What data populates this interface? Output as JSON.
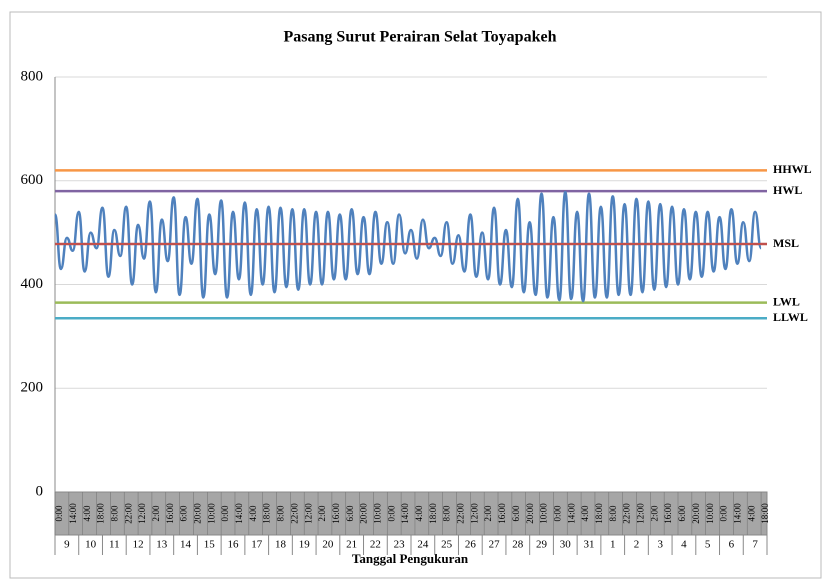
{
  "chart_data": {
    "type": "line",
    "title": "Pasang Surut Perairan Selat Toyapakeh",
    "x_label": "Tanggal Pengukuran",
    "color": "#4f81bd",
    "ylim": [
      0,
      800
    ],
    "yticks": [
      0,
      200,
      400,
      600,
      800
    ],
    "grid": true,
    "xlim": [
      0,
      720
    ],
    "xticks": [
      {
        "value": 0,
        "label": "0:00"
      },
      {
        "value": 14,
        "label": "14:00"
      },
      {
        "value": 28,
        "label": "4:00"
      },
      {
        "value": 42,
        "label": "18:00"
      },
      {
        "value": 56,
        "label": "8:00"
      },
      {
        "value": 70,
        "label": "22:00"
      },
      {
        "value": 84,
        "label": "12:00"
      },
      {
        "value": 98,
        "label": "2:00"
      },
      {
        "value": 112,
        "label": "16:00"
      },
      {
        "value": 126,
        "label": "6:00"
      },
      {
        "value": 140,
        "label": "20:00"
      },
      {
        "value": 154,
        "label": "10:00"
      },
      {
        "value": 168,
        "label": "0:00"
      },
      {
        "value": 182,
        "label": "14:00"
      },
      {
        "value": 196,
        "label": "4:00"
      },
      {
        "value": 210,
        "label": "18:00"
      },
      {
        "value": 224,
        "label": "8:00"
      },
      {
        "value": 238,
        "label": "22:00"
      },
      {
        "value": 252,
        "label": "12:00"
      },
      {
        "value": 266,
        "label": "2:00"
      },
      {
        "value": 280,
        "label": "16:00"
      },
      {
        "value": 294,
        "label": "6:00"
      },
      {
        "value": 308,
        "label": "20:00"
      },
      {
        "value": 322,
        "label": "10:00"
      },
      {
        "value": 336,
        "label": "0:00"
      },
      {
        "value": 350,
        "label": "14:00"
      },
      {
        "value": 364,
        "label": "4:00"
      },
      {
        "value": 378,
        "label": "18:00"
      },
      {
        "value": 392,
        "label": "8:00"
      },
      {
        "value": 406,
        "label": "22:00"
      },
      {
        "value": 420,
        "label": "12:00"
      },
      {
        "value": 434,
        "label": "2:00"
      },
      {
        "value": 448,
        "label": "16:00"
      },
      {
        "value": 462,
        "label": "6:00"
      },
      {
        "value": 476,
        "label": "20:00"
      },
      {
        "value": 490,
        "label": "10:00"
      },
      {
        "value": 504,
        "label": "0:00"
      },
      {
        "value": 518,
        "label": "14:00"
      },
      {
        "value": 532,
        "label": "4:00"
      },
      {
        "value": 546,
        "label": "18:00"
      },
      {
        "value": 560,
        "label": "8:00"
      },
      {
        "value": 574,
        "label": "22:00"
      },
      {
        "value": 588,
        "label": "12:00"
      },
      {
        "value": 602,
        "label": "2:00"
      },
      {
        "value": 616,
        "label": "16:00"
      },
      {
        "value": 630,
        "label": "6:00"
      },
      {
        "value": 644,
        "label": "20:00"
      },
      {
        "value": 658,
        "label": "10:00"
      },
      {
        "value": 672,
        "label": "0:00"
      },
      {
        "value": 686,
        "label": "14:00"
      },
      {
        "value": 700,
        "label": "4:00"
      },
      {
        "value": 714,
        "label": "18:00"
      }
    ],
    "days": [
      "9",
      "10",
      "11",
      "12",
      "13",
      "14",
      "15",
      "16",
      "17",
      "18",
      "19",
      "20",
      "21",
      "22",
      "23",
      "24",
      "25",
      "26",
      "27",
      "28",
      "29",
      "30",
      "31",
      "1",
      "2",
      "3",
      "4",
      "5",
      "6",
      "7"
    ],
    "x": [
      0,
      6,
      12,
      18,
      24,
      30,
      36,
      42,
      48,
      54,
      60,
      66,
      72,
      78,
      84,
      90,
      96,
      102,
      108,
      114,
      120,
      126,
      132,
      138,
      144,
      150,
      156,
      162,
      168,
      174,
      180,
      186,
      192,
      198,
      204,
      210,
      216,
      222,
      228,
      234,
      240,
      246,
      252,
      258,
      264,
      270,
      276,
      282,
      288,
      294,
      300,
      306,
      312,
      318,
      324,
      330,
      336,
      342,
      348,
      354,
      360,
      366,
      372,
      378,
      384,
      390,
      396,
      402,
      408,
      414,
      420,
      426,
      432,
      438,
      444,
      450,
      456,
      462,
      468,
      474,
      480,
      486,
      492,
      498,
      504,
      510,
      516,
      522,
      528,
      534,
      540,
      546,
      552,
      558,
      564,
      570,
      576,
      582,
      588,
      594,
      600,
      606,
      612,
      618,
      624,
      630,
      636,
      642,
      648,
      654,
      660,
      666,
      672,
      678,
      684,
      690,
      696,
      702,
      708,
      714
    ],
    "values": [
      535,
      430,
      490,
      465,
      540,
      425,
      500,
      470,
      548,
      415,
      505,
      455,
      550,
      400,
      515,
      450,
      560,
      385,
      525,
      445,
      568,
      380,
      530,
      440,
      565,
      375,
      535,
      420,
      562,
      375,
      540,
      410,
      558,
      380,
      545,
      400,
      550,
      385,
      548,
      395,
      545,
      390,
      545,
      400,
      540,
      400,
      540,
      410,
      535,
      410,
      545,
      420,
      530,
      420,
      540,
      440,
      520,
      440,
      535,
      460,
      505,
      450,
      525,
      470,
      490,
      455,
      520,
      440,
      495,
      425,
      535,
      415,
      500,
      410,
      548,
      400,
      505,
      395,
      565,
      385,
      520,
      380,
      575,
      375,
      530,
      370,
      578,
      372,
      540,
      368,
      575,
      375,
      550,
      375,
      570,
      380,
      555,
      380,
      565,
      385,
      560,
      390,
      555,
      395,
      550,
      400,
      545,
      410,
      540,
      415,
      540,
      425,
      530,
      430,
      545,
      440,
      520,
      445,
      540,
      470
    ],
    "reference_lines": [
      {
        "label": "HHWL",
        "value": 620,
        "color": "#f79646"
      },
      {
        "label": "HWL",
        "value": 580,
        "color": "#8064a2"
      },
      {
        "label": "MSL",
        "value": 478,
        "color": "#c0504d"
      },
      {
        "label": "LWL",
        "value": 365,
        "color": "#9bbb59"
      },
      {
        "label": "LLWL",
        "value": 335,
        "color": "#4bacc6"
      }
    ]
  }
}
